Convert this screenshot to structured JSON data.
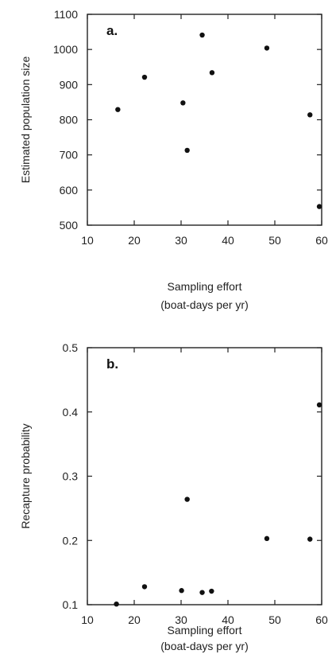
{
  "chart_data": [
    {
      "type": "scatter",
      "panel_label": "a.",
      "xlabel_line1": "Sampling effort",
      "xlabel_line2": "(boat-days per yr)",
      "ylabel": "Estimated population size",
      "xlim": [
        10,
        60
      ],
      "ylim": [
        500,
        1100
      ],
      "xticks": [
        "10",
        "20",
        "30",
        "40",
        "50",
        "60"
      ],
      "yticks": [
        "500",
        "600",
        "700",
        "800",
        "900",
        "1000",
        "1100"
      ],
      "grid": false,
      "points": [
        {
          "x": 16.5,
          "y": 829
        },
        {
          "x": 22.2,
          "y": 921
        },
        {
          "x": 30.4,
          "y": 848
        },
        {
          "x": 31.3,
          "y": 713
        },
        {
          "x": 34.5,
          "y": 1041
        },
        {
          "x": 36.6,
          "y": 934
        },
        {
          "x": 48.3,
          "y": 1004
        },
        {
          "x": 57.5,
          "y": 814
        },
        {
          "x": 59.5,
          "y": 553
        }
      ]
    },
    {
      "type": "scatter",
      "panel_label": "b.",
      "xlabel_line1": "Sampling effort",
      "xlabel_line2": "(boat-days per yr)",
      "ylabel": "Recapture probability",
      "xlim": [
        10,
        60
      ],
      "ylim": [
        0.1,
        0.5
      ],
      "xticks": [
        "10",
        "20",
        "30",
        "40",
        "50",
        "60"
      ],
      "yticks": [
        "0.1",
        "0.2",
        "0.3",
        "0.4",
        "0.5"
      ],
      "grid": false,
      "points": [
        {
          "x": 16.2,
          "y": 0.101
        },
        {
          "x": 22.2,
          "y": 0.128
        },
        {
          "x": 30.1,
          "y": 0.122
        },
        {
          "x": 31.3,
          "y": 0.264
        },
        {
          "x": 34.5,
          "y": 0.119
        },
        {
          "x": 36.5,
          "y": 0.121
        },
        {
          "x": 48.3,
          "y": 0.203
        },
        {
          "x": 57.5,
          "y": 0.202
        },
        {
          "x": 59.5,
          "y": 0.411
        }
      ]
    }
  ]
}
